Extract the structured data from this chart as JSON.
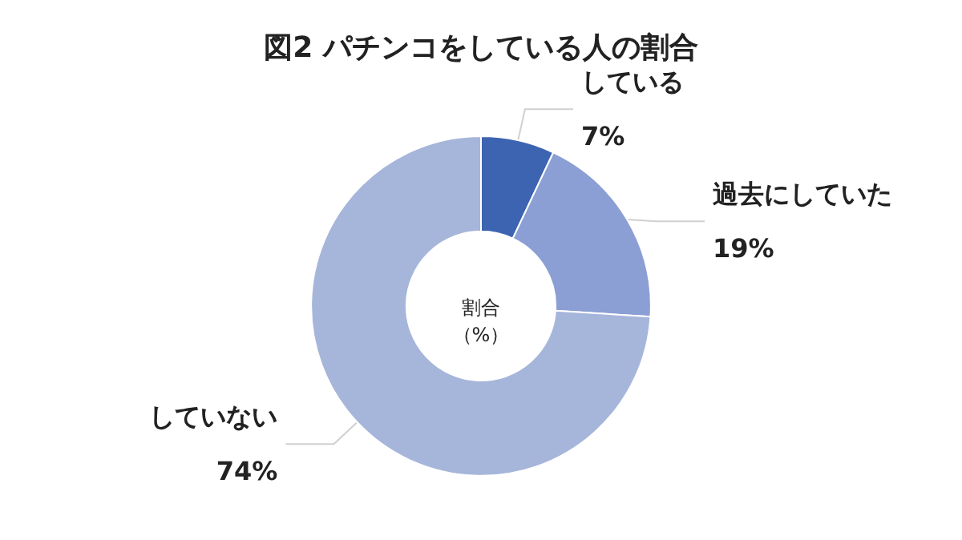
{
  "chart_data": {
    "type": "donut",
    "title": "図2 パチンコをしている人の割合",
    "categories": [
      "している",
      "過去にしていた",
      "していない"
    ],
    "values": [
      7,
      19,
      74
    ],
    "colors": [
      "#3d64b1",
      "#8b9fd4",
      "#a6b5da"
    ],
    "value_labels": [
      "7%",
      "19%",
      "74%"
    ],
    "annotations": [
      "割合",
      "（%）"
    ],
    "legend": false
  }
}
